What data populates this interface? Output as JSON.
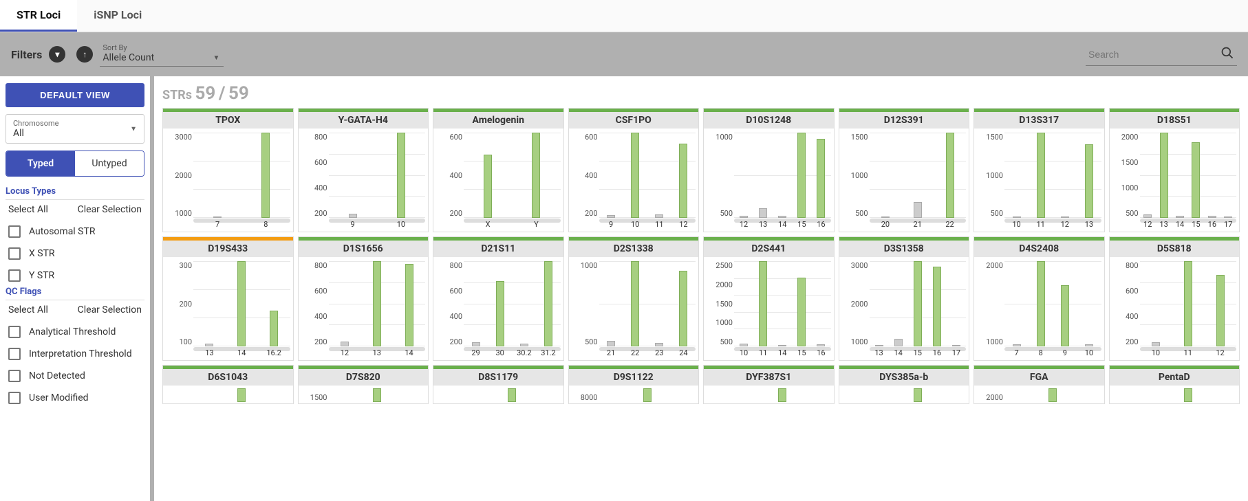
{
  "colors": {
    "bar_hi": "#a7cf81",
    "bar_lo": "#cccccc",
    "status_ok": "#6ab04c",
    "status_warn": "#f39c12",
    "accent": "#3f51b5"
  },
  "tabs": [
    {
      "label": "STR Loci",
      "active": true
    },
    {
      "label": "iSNP Loci",
      "active": false
    }
  ],
  "toolbar": {
    "filters_label": "Filters",
    "sort_label": "Sort By",
    "sort_value": "Allele Count",
    "search_placeholder": "Search"
  },
  "sidebar": {
    "default_view": "DEFAULT VIEW",
    "chromosome_label": "Chromosome",
    "chromosome_value": "All",
    "toggle": {
      "typed": "Typed",
      "untyped": "Untyped",
      "active": "typed"
    },
    "locus_types": {
      "title": "Locus Types",
      "select_all": "Select All",
      "clear": "Clear Selection",
      "items": [
        "Autosomal STR",
        "X STR",
        "Y STR"
      ]
    },
    "qc_flags": {
      "title": "QC Flags",
      "select_all": "Select All",
      "clear": "Clear Selection",
      "items": [
        "Analytical Threshold",
        "Interpretation Threshold",
        "Not Detected",
        "User Modified"
      ]
    }
  },
  "counter": {
    "prefix": "STRs",
    "shown": 59,
    "total": 59
  },
  "loci": [
    {
      "name": "TPOX",
      "status": "ok",
      "ymax": 3000,
      "yticks": [
        1000,
        2000,
        3000
      ],
      "alleles": [
        {
          "l": "7",
          "v": 50,
          "c": "lo"
        },
        {
          "l": "8",
          "v": 3200,
          "c": "hi"
        }
      ]
    },
    {
      "name": "Y-GATA-H4",
      "status": "ok",
      "ymax": 800,
      "yticks": [
        200,
        400,
        600,
        800
      ],
      "alleles": [
        {
          "l": "9",
          "v": 40,
          "c": "lo"
        },
        {
          "l": "10",
          "v": 830,
          "c": "hi"
        }
      ]
    },
    {
      "name": "Amelogenin",
      "status": "ok",
      "ymax": 600,
      "yticks": [
        200,
        400,
        600
      ],
      "alleles": [
        {
          "l": "X",
          "v": 480,
          "c": "hi"
        },
        {
          "l": "Y",
          "v": 650,
          "c": "hi"
        }
      ]
    },
    {
      "name": "CSF1PO",
      "status": "ok",
      "ymax": 600,
      "yticks": [
        200,
        400,
        600
      ],
      "alleles": [
        {
          "l": "9",
          "v": 20,
          "c": "lo"
        },
        {
          "l": "10",
          "v": 640,
          "c": "hi"
        },
        {
          "l": "11",
          "v": 25,
          "c": "lo"
        },
        {
          "l": "12",
          "v": 560,
          "c": "hi"
        }
      ]
    },
    {
      "name": "D10S1248",
      "status": "ok",
      "ymax": 1000,
      "yticks": [
        500,
        1000
      ],
      "alleles": [
        {
          "l": "12",
          "v": 30,
          "c": "lo"
        },
        {
          "l": "13",
          "v": 120,
          "c": "lo"
        },
        {
          "l": "14",
          "v": 30,
          "c": "lo"
        },
        {
          "l": "15",
          "v": 1080,
          "c": "hi"
        },
        {
          "l": "16",
          "v": 1000,
          "c": "hi"
        }
      ]
    },
    {
      "name": "D12S391",
      "status": "ok",
      "ymax": 1500,
      "yticks": [
        500,
        1000,
        1500
      ],
      "alleles": [
        {
          "l": "20",
          "v": 30,
          "c": "lo"
        },
        {
          "l": "21",
          "v": 300,
          "c": "lo"
        },
        {
          "l": "22",
          "v": 1600,
          "c": "hi"
        }
      ]
    },
    {
      "name": "D13S317",
      "status": "ok",
      "ymax": 1500,
      "yticks": [
        500,
        1000,
        1500
      ],
      "alleles": [
        {
          "l": "10",
          "v": 30,
          "c": "lo"
        },
        {
          "l": "11",
          "v": 1620,
          "c": "hi"
        },
        {
          "l": "12",
          "v": 30,
          "c": "lo"
        },
        {
          "l": "13",
          "v": 1400,
          "c": "hi"
        }
      ]
    },
    {
      "name": "D18S51",
      "status": "ok",
      "ymax": 2000,
      "yticks": [
        500,
        1000,
        1500,
        2000
      ],
      "alleles": [
        {
          "l": "12",
          "v": 80,
          "c": "lo"
        },
        {
          "l": "13",
          "v": 2150,
          "c": "hi"
        },
        {
          "l": "14",
          "v": 60,
          "c": "lo"
        },
        {
          "l": "15",
          "v": 1900,
          "c": "hi"
        },
        {
          "l": "16",
          "v": 50,
          "c": "lo"
        },
        {
          "l": "17",
          "v": 40,
          "c": "lo"
        }
      ]
    },
    {
      "name": "D19S433",
      "status": "warn",
      "ymax": 300,
      "yticks": [
        100,
        200,
        300
      ],
      "alleles": [
        {
          "l": "13",
          "v": 10,
          "c": "lo"
        },
        {
          "l": "14",
          "v": 310,
          "c": "hi"
        },
        {
          "l": "16.2",
          "v": 130,
          "c": "hi"
        }
      ]
    },
    {
      "name": "D1S1656",
      "status": "ok",
      "ymax": 800,
      "yticks": [
        200,
        400,
        600,
        800
      ],
      "alleles": [
        {
          "l": "12",
          "v": 50,
          "c": "lo"
        },
        {
          "l": "13",
          "v": 850,
          "c": "hi"
        },
        {
          "l": "14",
          "v": 820,
          "c": "hi"
        }
      ]
    },
    {
      "name": "D21S11",
      "status": "ok",
      "ymax": 800,
      "yticks": [
        200,
        400,
        600,
        800
      ],
      "alleles": [
        {
          "l": "29",
          "v": 40,
          "c": "lo"
        },
        {
          "l": "30",
          "v": 650,
          "c": "hi"
        },
        {
          "l": "30.2",
          "v": 30,
          "c": "lo"
        },
        {
          "l": "31.2",
          "v": 850,
          "c": "hi"
        }
      ]
    },
    {
      "name": "D2S1338",
      "status": "ok",
      "ymax": 1000,
      "yticks": [
        500,
        1000
      ],
      "alleles": [
        {
          "l": "21",
          "v": 70,
          "c": "lo"
        },
        {
          "l": "22",
          "v": 1080,
          "c": "hi"
        },
        {
          "l": "23",
          "v": 40,
          "c": "lo"
        },
        {
          "l": "24",
          "v": 960,
          "c": "hi"
        }
      ]
    },
    {
      "name": "D2S441",
      "status": "ok",
      "ymax": 2500,
      "yticks": [
        500,
        1000,
        1500,
        2000,
        2500
      ],
      "alleles": [
        {
          "l": "10",
          "v": 80,
          "c": "lo"
        },
        {
          "l": "11",
          "v": 2600,
          "c": "hi"
        },
        {
          "l": "14",
          "v": 50,
          "c": "lo"
        },
        {
          "l": "15",
          "v": 2100,
          "c": "hi"
        },
        {
          "l": "16",
          "v": 60,
          "c": "lo"
        }
      ]
    },
    {
      "name": "D3S1358",
      "status": "ok",
      "ymax": 3000,
      "yticks": [
        1000,
        2000,
        3000
      ],
      "alleles": [
        {
          "l": "13",
          "v": 50,
          "c": "lo"
        },
        {
          "l": "14",
          "v": 280,
          "c": "lo"
        },
        {
          "l": "15",
          "v": 3200,
          "c": "hi"
        },
        {
          "l": "16",
          "v": 3000,
          "c": "hi"
        },
        {
          "l": "17",
          "v": 60,
          "c": "lo"
        }
      ]
    },
    {
      "name": "D4S2408",
      "status": "ok",
      "ymax": 2000,
      "yticks": [
        1000,
        2000
      ],
      "alleles": [
        {
          "l": "7",
          "v": 50,
          "c": "lo"
        },
        {
          "l": "8",
          "v": 2150,
          "c": "hi"
        },
        {
          "l": "9",
          "v": 1550,
          "c": "hi"
        },
        {
          "l": "10",
          "v": 50,
          "c": "lo"
        }
      ]
    },
    {
      "name": "D5S818",
      "status": "ok",
      "ymax": 800,
      "yticks": [
        200,
        400,
        600,
        800
      ],
      "alleles": [
        {
          "l": "10",
          "v": 40,
          "c": "lo"
        },
        {
          "l": "11",
          "v": 860,
          "c": "hi"
        },
        {
          "l": "12",
          "v": 720,
          "c": "hi"
        }
      ]
    },
    {
      "name": "D6S1043",
      "status": "ok",
      "ymax": 0,
      "yticks": [],
      "short": true,
      "alleles": [
        {
          "l": "",
          "v": 1,
          "c": "hi"
        }
      ]
    },
    {
      "name": "D7S820",
      "status": "ok",
      "ymax": 1500,
      "yticks": [
        1500
      ],
      "short": true,
      "alleles": [
        {
          "l": "",
          "v": 1,
          "c": "hi"
        }
      ]
    },
    {
      "name": "D8S1179",
      "status": "ok",
      "ymax": 0,
      "yticks": [],
      "short": true,
      "alleles": [
        {
          "l": "",
          "v": 1,
          "c": "hi"
        }
      ]
    },
    {
      "name": "D9S1122",
      "status": "ok",
      "ymax": 8000,
      "yticks": [
        8000
      ],
      "short": true,
      "alleles": [
        {
          "l": "",
          "v": 1,
          "c": "hi"
        }
      ]
    },
    {
      "name": "DYF387S1",
      "status": "ok",
      "ymax": 0,
      "yticks": [],
      "short": true,
      "alleles": [
        {
          "l": "",
          "v": 1,
          "c": "hi"
        }
      ]
    },
    {
      "name": "DYS385a-b",
      "status": "ok",
      "ymax": 0,
      "yticks": [],
      "short": true,
      "alleles": [
        {
          "l": "",
          "v": 1,
          "c": "hi"
        }
      ]
    },
    {
      "name": "FGA",
      "status": "ok",
      "ymax": 2000,
      "yticks": [
        2000
      ],
      "short": true,
      "alleles": [
        {
          "l": "",
          "v": 1,
          "c": "hi"
        }
      ]
    },
    {
      "name": "PentaD",
      "status": "ok",
      "ymax": 0,
      "yticks": [],
      "short": true,
      "alleles": [
        {
          "l": "",
          "v": 1,
          "c": "hi"
        }
      ]
    }
  ]
}
